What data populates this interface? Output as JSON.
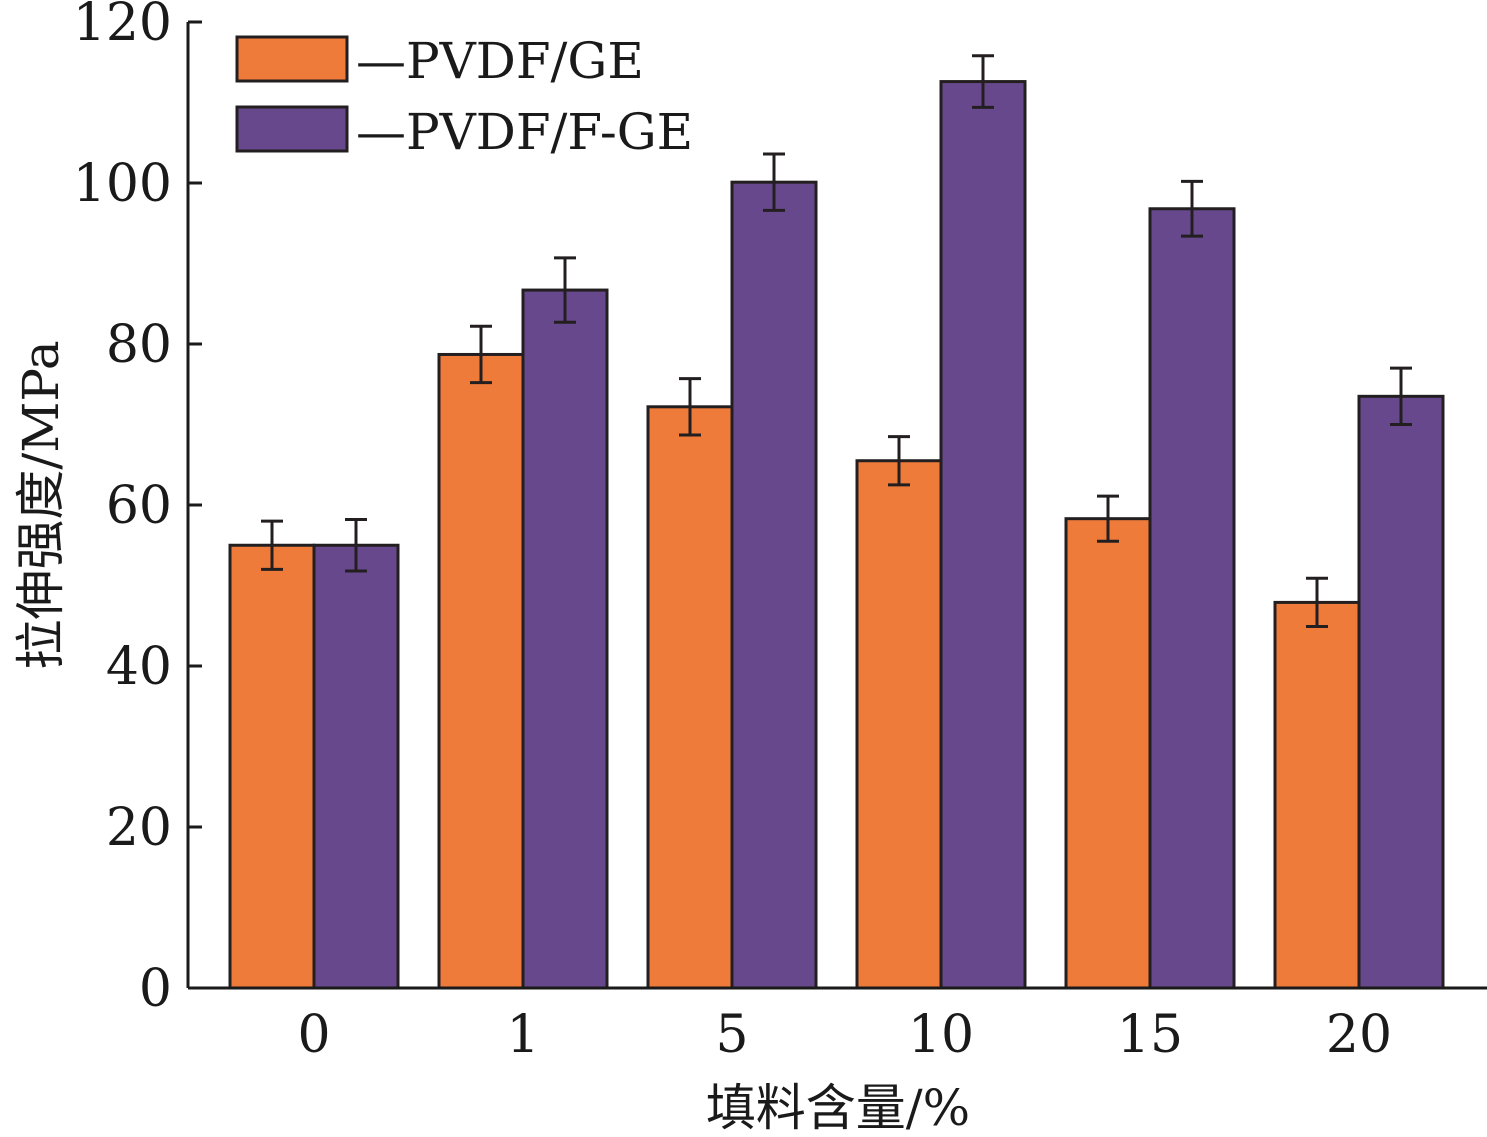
{
  "chart_data": {
    "type": "bar",
    "xlabel": "填料含量/%",
    "ylabel": "拉伸强度/MPa",
    "categories": [
      "0",
      "1",
      "5",
      "10",
      "15",
      "20"
    ],
    "ylim": [
      0,
      120
    ],
    "yticks": [
      "0",
      "20",
      "40",
      "60",
      "80",
      "100",
      "120"
    ],
    "series": [
      {
        "name": "—PVDF/GE",
        "color": "#ef7b3a",
        "values": [
          55,
          78.7,
          72.2,
          65.5,
          58.3,
          47.9
        ],
        "errors": [
          3.0,
          3.5,
          3.5,
          3.0,
          2.8,
          3.0
        ]
      },
      {
        "name": "—PVDF/F-GE",
        "color": "#68488c",
        "values": [
          55,
          86.7,
          100.1,
          112.6,
          96.8,
          73.5
        ],
        "errors": [
          3.2,
          4.0,
          3.5,
          3.2,
          3.4,
          3.5
        ]
      }
    ],
    "legend": "top-left",
    "grid": false
  }
}
